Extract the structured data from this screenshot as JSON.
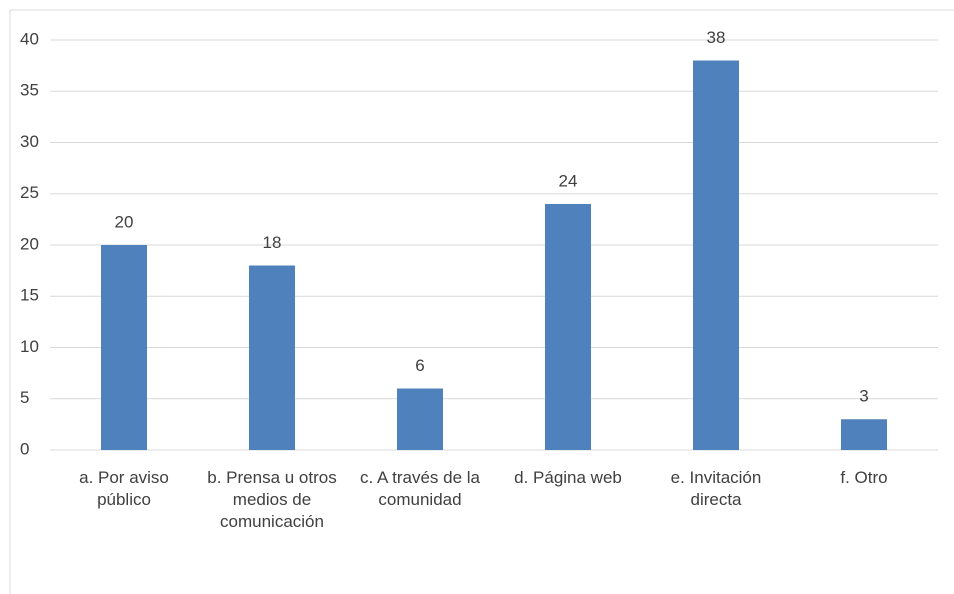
{
  "chart_data": {
    "type": "bar",
    "categories": [
      "a. Por aviso público",
      "b. Prensa u otros medios de comunicación",
      "c. A través de la comunidad",
      "d. Página web",
      "e. Invitación directa",
      "f. Otro"
    ],
    "values": [
      20,
      18,
      6,
      24,
      38,
      3
    ],
    "color": "#4f81bd",
    "ylim": [
      0,
      40
    ],
    "yticks": [
      0,
      5,
      10,
      15,
      20,
      25,
      30,
      35,
      40
    ],
    "grid": true
  }
}
